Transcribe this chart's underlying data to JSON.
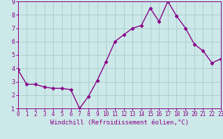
{
  "x": [
    0,
    1,
    2,
    3,
    4,
    5,
    6,
    7,
    8,
    9,
    10,
    11,
    12,
    13,
    14,
    15,
    16,
    17,
    18,
    19,
    20,
    21,
    22,
    23
  ],
  "y": [
    3.9,
    2.8,
    2.8,
    2.6,
    2.5,
    2.5,
    2.4,
    1.0,
    1.9,
    3.1,
    4.5,
    6.0,
    6.5,
    7.0,
    7.2,
    8.5,
    7.5,
    9.0,
    7.9,
    7.0,
    5.8,
    5.3,
    4.4,
    4.7
  ],
  "line_color": "#880088",
  "marker": "D",
  "marker_size": 2.5,
  "bg_color": "#cce8e8",
  "grid_color": "#aacccc",
  "xlabel": "Windchill (Refroidissement éolien,°C)",
  "xlabel_color": "#880088",
  "tick_color": "#880088",
  "xlim": [
    0,
    23
  ],
  "ylim": [
    1,
    9
  ],
  "yticks": [
    1,
    2,
    3,
    4,
    5,
    6,
    7,
    8,
    9
  ],
  "xticks": [
    0,
    1,
    2,
    3,
    4,
    5,
    6,
    7,
    8,
    9,
    10,
    11,
    12,
    13,
    14,
    15,
    16,
    17,
    18,
    19,
    20,
    21,
    22,
    23
  ],
  "tick_fontsize": 5.5,
  "xlabel_fontsize": 6.5,
  "linewidth": 1.0
}
